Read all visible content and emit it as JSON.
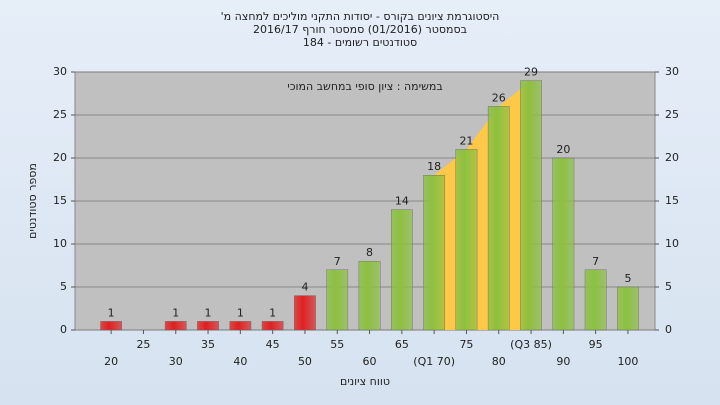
{
  "chart_data": {
    "type": "bar",
    "title": "היסטוגרמת ציונים בקורס - יסודות התקני מוליכים למחצה מ'",
    "subtitle": "בסמסטר (01/2016) סמסטר חורף 2016/17",
    "subtitle2": "סטודנטים רשומים - 184",
    "annotation": "במשימה : ציון סופי במחשב המוכי",
    "x_label": "טווח ציונים",
    "y_label": "מספר סטודנטים",
    "categories": [
      "20",
      "25",
      "30",
      "35",
      "40",
      "45",
      "50",
      "55",
      "60",
      "65",
      "(Q1 70)",
      "75",
      "80",
      "(Q3 85)",
      "90",
      "95",
      "100"
    ],
    "values": [
      1,
      null,
      1,
      1,
      1,
      1,
      4,
      7,
      8,
      14,
      18,
      21,
      26,
      29,
      20,
      7,
      5
    ],
    "colors": [
      "#e02020",
      "#e02020",
      "#e02020",
      "#e02020",
      "#e02020",
      "#e02020",
      "#e02020",
      "#8cc040",
      "#8cc040",
      "#8cc040",
      "#8cc040",
      "#8cc040",
      "#8cc040",
      "#8cc040",
      "#8cc040",
      "#8cc040",
      "#8cc040"
    ],
    "highlight": {
      "from": 10,
      "to": 13,
      "color": "#ffc848"
    },
    "ylim": [
      0,
      30
    ],
    "yticks": [
      0,
      5,
      10,
      15,
      20,
      25,
      30
    ],
    "y2lim": [
      0,
      30
    ],
    "y2ticks": [
      0,
      5,
      10,
      15,
      20,
      25,
      30
    ],
    "grid": true
  }
}
